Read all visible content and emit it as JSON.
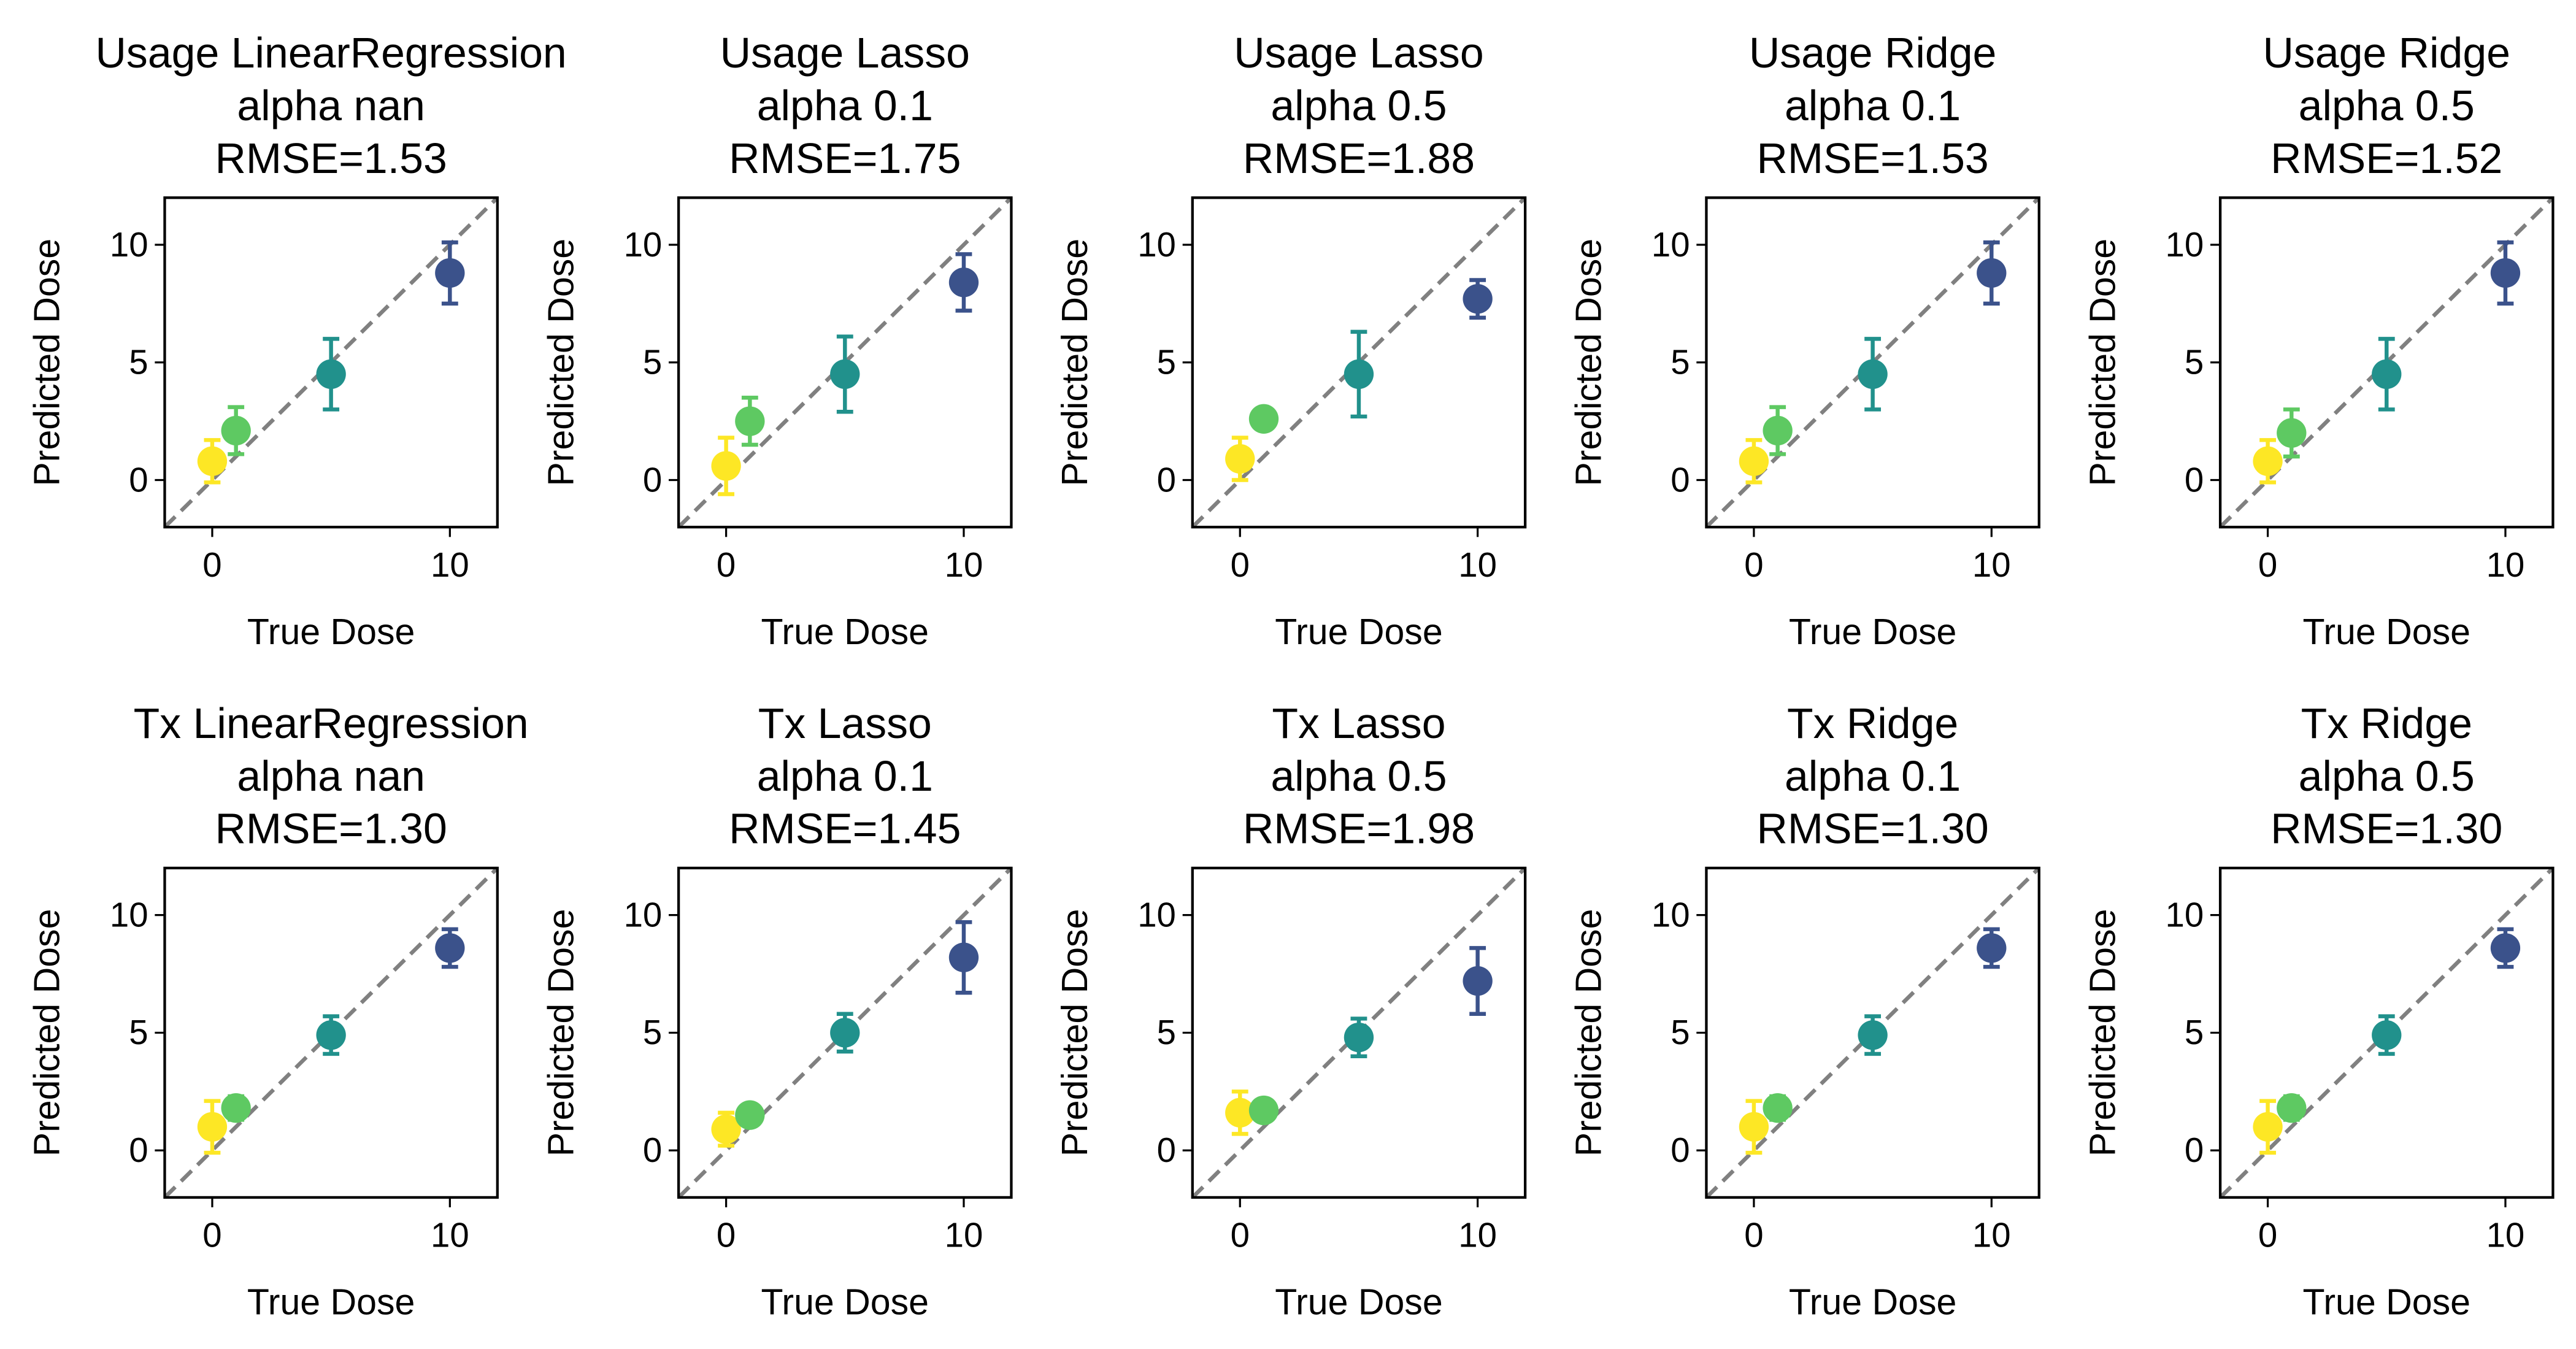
{
  "chart_data": [
    {
      "type": "scatter",
      "title": [
        "Usage LinearRegression",
        "alpha nan",
        "RMSE=1.53"
      ],
      "x_label": "True Dose",
      "y_label": "Predicted Dose",
      "x": [
        0,
        1,
        5,
        10
      ],
      "values": [
        0.8,
        2.1,
        4.5,
        8.8
      ],
      "errors": [
        0.9,
        1.0,
        1.5,
        1.3
      ],
      "colors": [
        "#fde725",
        "#5ec962",
        "#21918c",
        "#3b528b"
      ],
      "xlim": [
        -2,
        12
      ],
      "ylim": [
        -2,
        12
      ],
      "xticks": [
        0,
        10
      ],
      "yticks": [
        0,
        5,
        10
      ]
    },
    {
      "type": "scatter",
      "title": [
        "Usage Lasso",
        "alpha 0.1",
        "RMSE=1.75"
      ],
      "x_label": "True Dose",
      "y_label": "Predicted Dose",
      "x": [
        0,
        1,
        5,
        10
      ],
      "values": [
        0.6,
        2.5,
        4.5,
        8.4
      ],
      "errors": [
        1.2,
        1.0,
        1.6,
        1.2
      ],
      "colors": [
        "#fde725",
        "#5ec962",
        "#21918c",
        "#3b528b"
      ],
      "xlim": [
        -2,
        12
      ],
      "ylim": [
        -2,
        12
      ],
      "xticks": [
        0,
        10
      ],
      "yticks": [
        0,
        5,
        10
      ]
    },
    {
      "type": "scatter",
      "title": [
        "Usage Lasso",
        "alpha 0.5",
        "RMSE=1.88"
      ],
      "x_label": "True Dose",
      "y_label": "Predicted Dose",
      "x": [
        0,
        1,
        5,
        10
      ],
      "values": [
        0.9,
        2.6,
        4.5,
        7.7
      ],
      "errors": [
        0.9,
        0.1,
        1.8,
        0.8
      ],
      "colors": [
        "#fde725",
        "#5ec962",
        "#21918c",
        "#3b528b"
      ],
      "xlim": [
        -2,
        12
      ],
      "ylim": [
        -2,
        12
      ],
      "xticks": [
        0,
        10
      ],
      "yticks": [
        0,
        5,
        10
      ]
    },
    {
      "type": "scatter",
      "title": [
        "Usage Ridge",
        "alpha 0.1",
        "RMSE=1.53"
      ],
      "x_label": "True Dose",
      "y_label": "Predicted Dose",
      "x": [
        0,
        1,
        5,
        10
      ],
      "values": [
        0.8,
        2.1,
        4.5,
        8.8
      ],
      "errors": [
        0.9,
        1.0,
        1.5,
        1.3
      ],
      "colors": [
        "#fde725",
        "#5ec962",
        "#21918c",
        "#3b528b"
      ],
      "xlim": [
        -2,
        12
      ],
      "ylim": [
        -2,
        12
      ],
      "xticks": [
        0,
        10
      ],
      "yticks": [
        0,
        5,
        10
      ]
    },
    {
      "type": "scatter",
      "title": [
        "Usage Ridge",
        "alpha 0.5",
        "RMSE=1.52"
      ],
      "x_label": "True Dose",
      "y_label": "Predicted Dose",
      "x": [
        0,
        1,
        5,
        10
      ],
      "values": [
        0.8,
        2.0,
        4.5,
        8.8
      ],
      "errors": [
        0.9,
        1.0,
        1.5,
        1.3
      ],
      "colors": [
        "#fde725",
        "#5ec962",
        "#21918c",
        "#3b528b"
      ],
      "xlim": [
        -2,
        12
      ],
      "ylim": [
        -2,
        12
      ],
      "xticks": [
        0,
        10
      ],
      "yticks": [
        0,
        5,
        10
      ]
    },
    {
      "type": "scatter",
      "title": [
        "Tx LinearRegression",
        "alpha nan",
        "RMSE=1.30"
      ],
      "x_label": "True Dose",
      "y_label": "Predicted Dose",
      "x": [
        0,
        1,
        5,
        10
      ],
      "values": [
        1.0,
        1.8,
        4.9,
        8.6
      ],
      "errors": [
        1.1,
        0.5,
        0.8,
        0.8
      ],
      "colors": [
        "#fde725",
        "#5ec962",
        "#21918c",
        "#3b528b"
      ],
      "xlim": [
        -2,
        12
      ],
      "ylim": [
        -2,
        12
      ],
      "xticks": [
        0,
        10
      ],
      "yticks": [
        0,
        5,
        10
      ]
    },
    {
      "type": "scatter",
      "title": [
        "Tx Lasso",
        "alpha 0.1",
        "RMSE=1.45"
      ],
      "x_label": "True Dose",
      "y_label": "Predicted Dose",
      "x": [
        0,
        1,
        5,
        10
      ],
      "values": [
        0.9,
        1.5,
        5.0,
        8.2
      ],
      "errors": [
        0.7,
        0.3,
        0.8,
        1.5
      ],
      "colors": [
        "#fde725",
        "#5ec962",
        "#21918c",
        "#3b528b"
      ],
      "xlim": [
        -2,
        12
      ],
      "ylim": [
        -2,
        12
      ],
      "xticks": [
        0,
        10
      ],
      "yticks": [
        0,
        5,
        10
      ]
    },
    {
      "type": "scatter",
      "title": [
        "Tx Lasso",
        "alpha 0.5",
        "RMSE=1.98"
      ],
      "x_label": "True Dose",
      "y_label": "Predicted Dose",
      "x": [
        0,
        1,
        5,
        10
      ],
      "values": [
        1.6,
        1.7,
        4.8,
        7.2
      ],
      "errors": [
        0.9,
        0.3,
        0.8,
        1.4
      ],
      "colors": [
        "#fde725",
        "#5ec962",
        "#21918c",
        "#3b528b"
      ],
      "xlim": [
        -2,
        12
      ],
      "ylim": [
        -2,
        12
      ],
      "xticks": [
        0,
        10
      ],
      "yticks": [
        0,
        5,
        10
      ]
    },
    {
      "type": "scatter",
      "title": [
        "Tx Ridge",
        "alpha 0.1",
        "RMSE=1.30"
      ],
      "x_label": "True Dose",
      "y_label": "Predicted Dose",
      "x": [
        0,
        1,
        5,
        10
      ],
      "values": [
        1.0,
        1.8,
        4.9,
        8.6
      ],
      "errors": [
        1.1,
        0.5,
        0.8,
        0.8
      ],
      "colors": [
        "#fde725",
        "#5ec962",
        "#21918c",
        "#3b528b"
      ],
      "xlim": [
        -2,
        12
      ],
      "ylim": [
        -2,
        12
      ],
      "xticks": [
        0,
        10
      ],
      "yticks": [
        0,
        5,
        10
      ]
    },
    {
      "type": "scatter",
      "title": [
        "Tx Ridge",
        "alpha 0.5",
        "RMSE=1.30"
      ],
      "x_label": "True Dose",
      "y_label": "Predicted Dose",
      "x": [
        0,
        1,
        5,
        10
      ],
      "values": [
        1.0,
        1.8,
        4.9,
        8.6
      ],
      "errors": [
        1.1,
        0.5,
        0.8,
        0.8
      ],
      "colors": [
        "#fde725",
        "#5ec962",
        "#21918c",
        "#3b528b"
      ],
      "xlim": [
        -2,
        12
      ],
      "ylim": [
        -2,
        12
      ],
      "xticks": [
        0,
        10
      ],
      "yticks": [
        0,
        5,
        10
      ]
    }
  ]
}
